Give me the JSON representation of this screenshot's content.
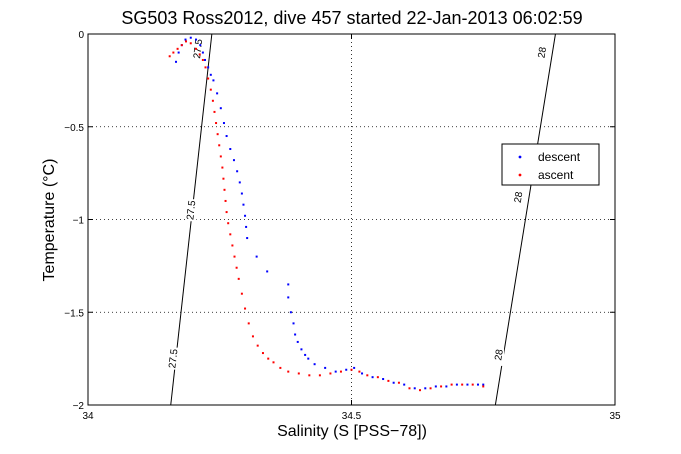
{
  "chart_data": {
    "type": "scatter",
    "title": "SG503 Ross2012, dive 457 started 22-Jan-2013 06:02:59",
    "xlabel": "Salinity (S [PSS−78])",
    "ylabel": "Temperature (°C)",
    "xlim": [
      34,
      35
    ],
    "ylim": [
      -2,
      0
    ],
    "x_ticks": [
      {
        "value": 34,
        "label": "34"
      },
      {
        "value": 34.5,
        "label": "34.5"
      },
      {
        "value": 35,
        "label": "35"
      }
    ],
    "y_ticks": [
      {
        "value": 0,
        "label": "0"
      },
      {
        "value": -0.5,
        "label": "−0.5"
      },
      {
        "value": -1,
        "label": "−1"
      },
      {
        "value": -1.5,
        "label": "−1.5"
      },
      {
        "value": -2,
        "label": "−2"
      }
    ],
    "grid": true,
    "grid_lines": {
      "x": [
        34.5
      ],
      "y": [
        -0.5,
        -1,
        -1.5
      ]
    },
    "legend_position": "right",
    "series": [
      {
        "name": "descent",
        "color": "#0000ff",
        "marker": "dot",
        "points": [
          [
            34.167,
            -0.15
          ],
          [
            34.172,
            -0.1
          ],
          [
            34.178,
            -0.06
          ],
          [
            34.185,
            -0.03
          ],
          [
            34.195,
            -0.02
          ],
          [
            34.205,
            -0.03
          ],
          [
            34.213,
            -0.06
          ],
          [
            34.218,
            -0.1
          ],
          [
            34.222,
            -0.14
          ],
          [
            34.228,
            -0.18
          ],
          [
            34.233,
            -0.22
          ],
          [
            34.238,
            -0.25
          ],
          [
            34.245,
            -0.32
          ],
          [
            34.252,
            -0.4
          ],
          [
            34.258,
            -0.48
          ],
          [
            34.263,
            -0.55
          ],
          [
            34.27,
            -0.62
          ],
          [
            34.277,
            -0.68
          ],
          [
            34.283,
            -0.74
          ],
          [
            34.288,
            -0.8
          ],
          [
            34.292,
            -0.86
          ],
          [
            34.295,
            -0.92
          ],
          [
            34.298,
            -0.98
          ],
          [
            34.3,
            -1.04
          ],
          [
            34.302,
            -1.1
          ],
          [
            34.32,
            -1.2
          ],
          [
            34.34,
            -1.28
          ],
          [
            34.38,
            -1.35
          ],
          [
            34.38,
            -1.42
          ],
          [
            34.385,
            -1.5
          ],
          [
            34.39,
            -1.56
          ],
          [
            34.393,
            -1.62
          ],
          [
            34.398,
            -1.66
          ],
          [
            34.405,
            -1.7
          ],
          [
            34.412,
            -1.73
          ],
          [
            34.418,
            -1.75
          ],
          [
            34.43,
            -1.78
          ],
          [
            34.45,
            -1.8
          ],
          [
            34.47,
            -1.82
          ],
          [
            34.49,
            -1.81
          ],
          [
            34.505,
            -1.8
          ],
          [
            34.52,
            -1.83
          ],
          [
            34.54,
            -1.85
          ],
          [
            34.56,
            -1.86
          ],
          [
            34.58,
            -1.88
          ],
          [
            34.6,
            -1.89
          ],
          [
            34.62,
            -1.91
          ],
          [
            34.64,
            -1.91
          ],
          [
            34.66,
            -1.9
          ],
          [
            34.68,
            -1.9
          ],
          [
            34.7,
            -1.89
          ],
          [
            34.72,
            -1.89
          ],
          [
            34.74,
            -1.89
          ],
          [
            34.75,
            -1.89
          ]
        ]
      },
      {
        "name": "ascent",
        "color": "#ff0000",
        "marker": "dot",
        "points": [
          [
            34.155,
            -0.12
          ],
          [
            34.162,
            -0.1
          ],
          [
            34.17,
            -0.08
          ],
          [
            34.178,
            -0.06
          ],
          [
            34.186,
            -0.04
          ],
          [
            34.195,
            -0.05
          ],
          [
            34.205,
            -0.08
          ],
          [
            34.212,
            -0.11
          ],
          [
            34.218,
            -0.14
          ],
          [
            34.223,
            -0.18
          ],
          [
            34.228,
            -0.24
          ],
          [
            34.233,
            -0.3
          ],
          [
            34.237,
            -0.36
          ],
          [
            34.24,
            -0.42
          ],
          [
            34.243,
            -0.48
          ],
          [
            34.246,
            -0.54
          ],
          [
            34.249,
            -0.6
          ],
          [
            34.252,
            -0.66
          ],
          [
            34.255,
            -0.72
          ],
          [
            34.257,
            -0.78
          ],
          [
            34.259,
            -0.84
          ],
          [
            34.261,
            -0.9
          ],
          [
            34.263,
            -0.96
          ],
          [
            34.266,
            -1.02
          ],
          [
            34.27,
            -1.08
          ],
          [
            34.274,
            -1.14
          ],
          [
            34.278,
            -1.2
          ],
          [
            34.282,
            -1.26
          ],
          [
            34.286,
            -1.32
          ],
          [
            34.292,
            -1.4
          ],
          [
            34.298,
            -1.48
          ],
          [
            34.305,
            -1.56
          ],
          [
            34.313,
            -1.63
          ],
          [
            34.322,
            -1.68
          ],
          [
            34.332,
            -1.72
          ],
          [
            34.342,
            -1.75
          ],
          [
            34.352,
            -1.77
          ],
          [
            34.365,
            -1.8
          ],
          [
            34.38,
            -1.82
          ],
          [
            34.4,
            -1.83
          ],
          [
            34.42,
            -1.84
          ],
          [
            34.44,
            -1.84
          ],
          [
            34.46,
            -1.83
          ],
          [
            34.48,
            -1.82
          ],
          [
            34.5,
            -1.81
          ],
          [
            34.515,
            -1.82
          ],
          [
            34.53,
            -1.84
          ],
          [
            34.55,
            -1.85
          ],
          [
            34.57,
            -1.87
          ],
          [
            34.59,
            -1.88
          ],
          [
            34.61,
            -1.91
          ],
          [
            34.63,
            -1.92
          ],
          [
            34.65,
            -1.91
          ],
          [
            34.67,
            -1.9
          ],
          [
            34.69,
            -1.89
          ],
          [
            34.71,
            -1.89
          ],
          [
            34.73,
            -1.89
          ],
          [
            34.75,
            -1.9
          ]
        ]
      }
    ],
    "contours": [
      {
        "label": "27.5",
        "points": [
          [
            34.235,
            0
          ],
          [
            34.157,
            -2
          ]
        ],
        "labels_at": [
          [
            34.209,
            -0.08
          ],
          [
            34.196,
            -0.95
          ],
          [
            34.162,
            -1.75
          ]
        ]
      },
      {
        "label": "28",
        "points": [
          [
            34.887,
            0
          ],
          [
            34.773,
            -2
          ]
        ],
        "labels_at": [
          [
            34.862,
            -0.1
          ],
          [
            34.817,
            -0.88
          ],
          [
            34.78,
            -1.73
          ]
        ]
      }
    ]
  }
}
